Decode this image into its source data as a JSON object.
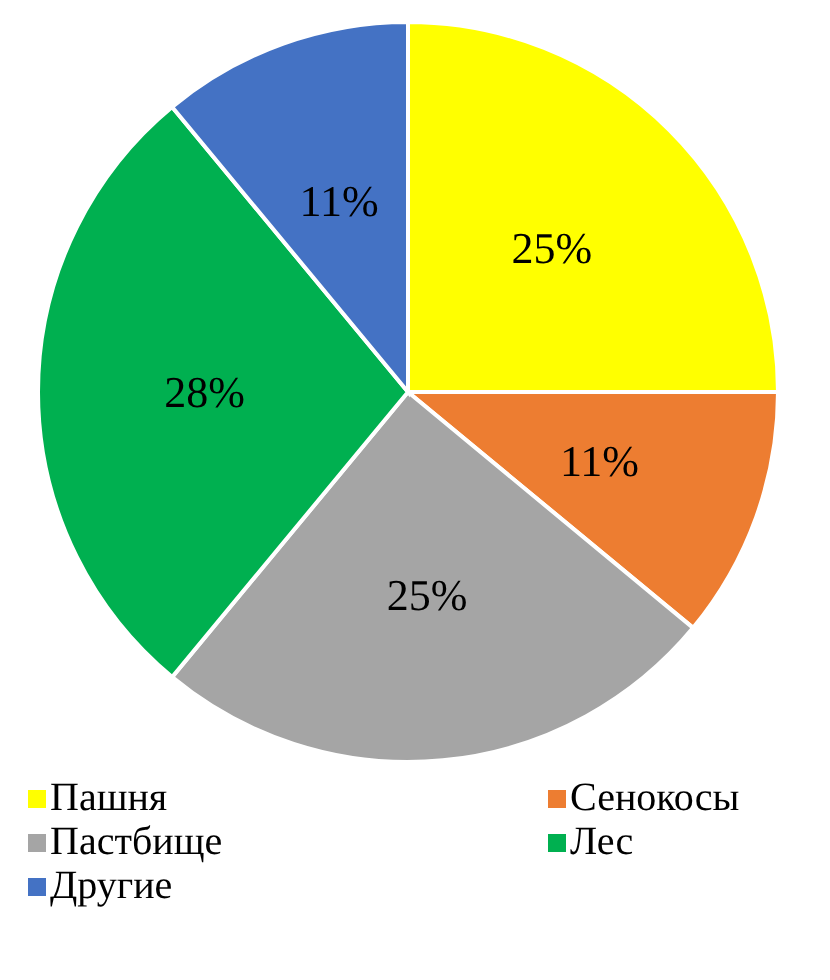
{
  "chart_data": {
    "type": "pie",
    "categories": [
      "Пашня",
      "Сенокосы",
      "Пастбище",
      "Лес",
      "Другие"
    ],
    "values": [
      25,
      11,
      25,
      28,
      11
    ],
    "colors": [
      "#ffff00",
      "#ed7d31",
      "#a5a5a5",
      "#00b050",
      "#4472c4"
    ],
    "value_labels": [
      "25%",
      "11%",
      "25%",
      "28%",
      "11%"
    ],
    "legend": "bottom"
  }
}
